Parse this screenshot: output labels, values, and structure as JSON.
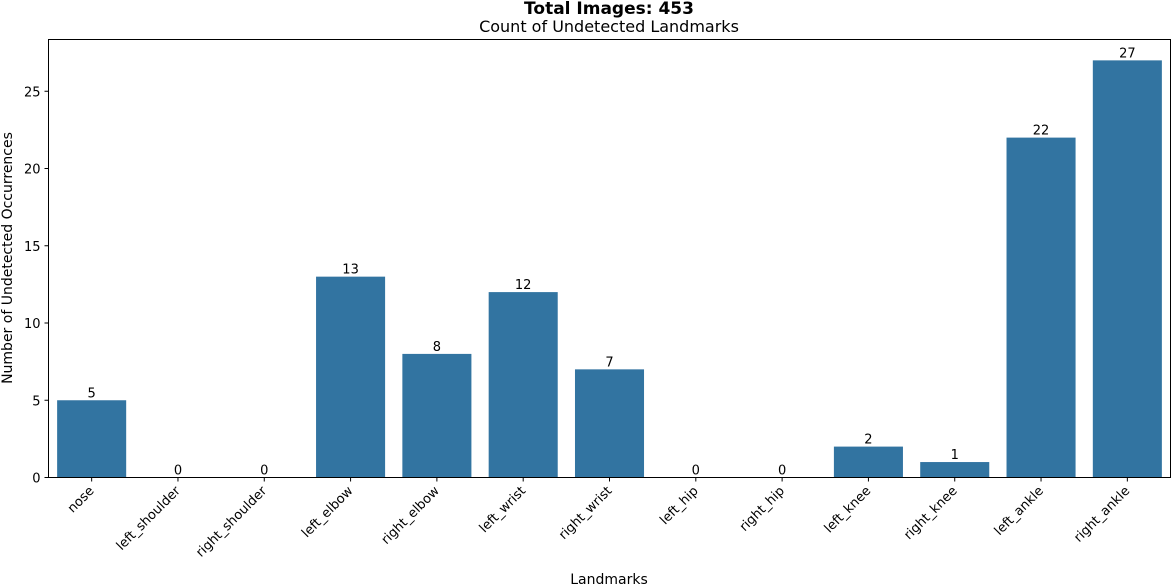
{
  "chart_data": {
    "type": "bar",
    "suptitle": "Total Images: 453",
    "title": "Count of Undetected Landmarks",
    "xlabel": "Landmarks",
    "ylabel": "Number of Undetected Occurrences",
    "categories": [
      "nose",
      "left_shoulder",
      "right_shoulder",
      "left_elbow",
      "right_elbow",
      "left_wrist",
      "right_wrist",
      "left_hip",
      "right_hip",
      "left_knee",
      "right_knee",
      "left_ankle",
      "right_ankle"
    ],
    "values": [
      5,
      0,
      0,
      13,
      8,
      12,
      7,
      0,
      0,
      2,
      1,
      22,
      27
    ],
    "ylim": [
      0,
      28.35
    ],
    "yticks": [
      0,
      5,
      10,
      15,
      20,
      25
    ],
    "bar_color": "#3274a1",
    "grid": false,
    "legend": false
  }
}
